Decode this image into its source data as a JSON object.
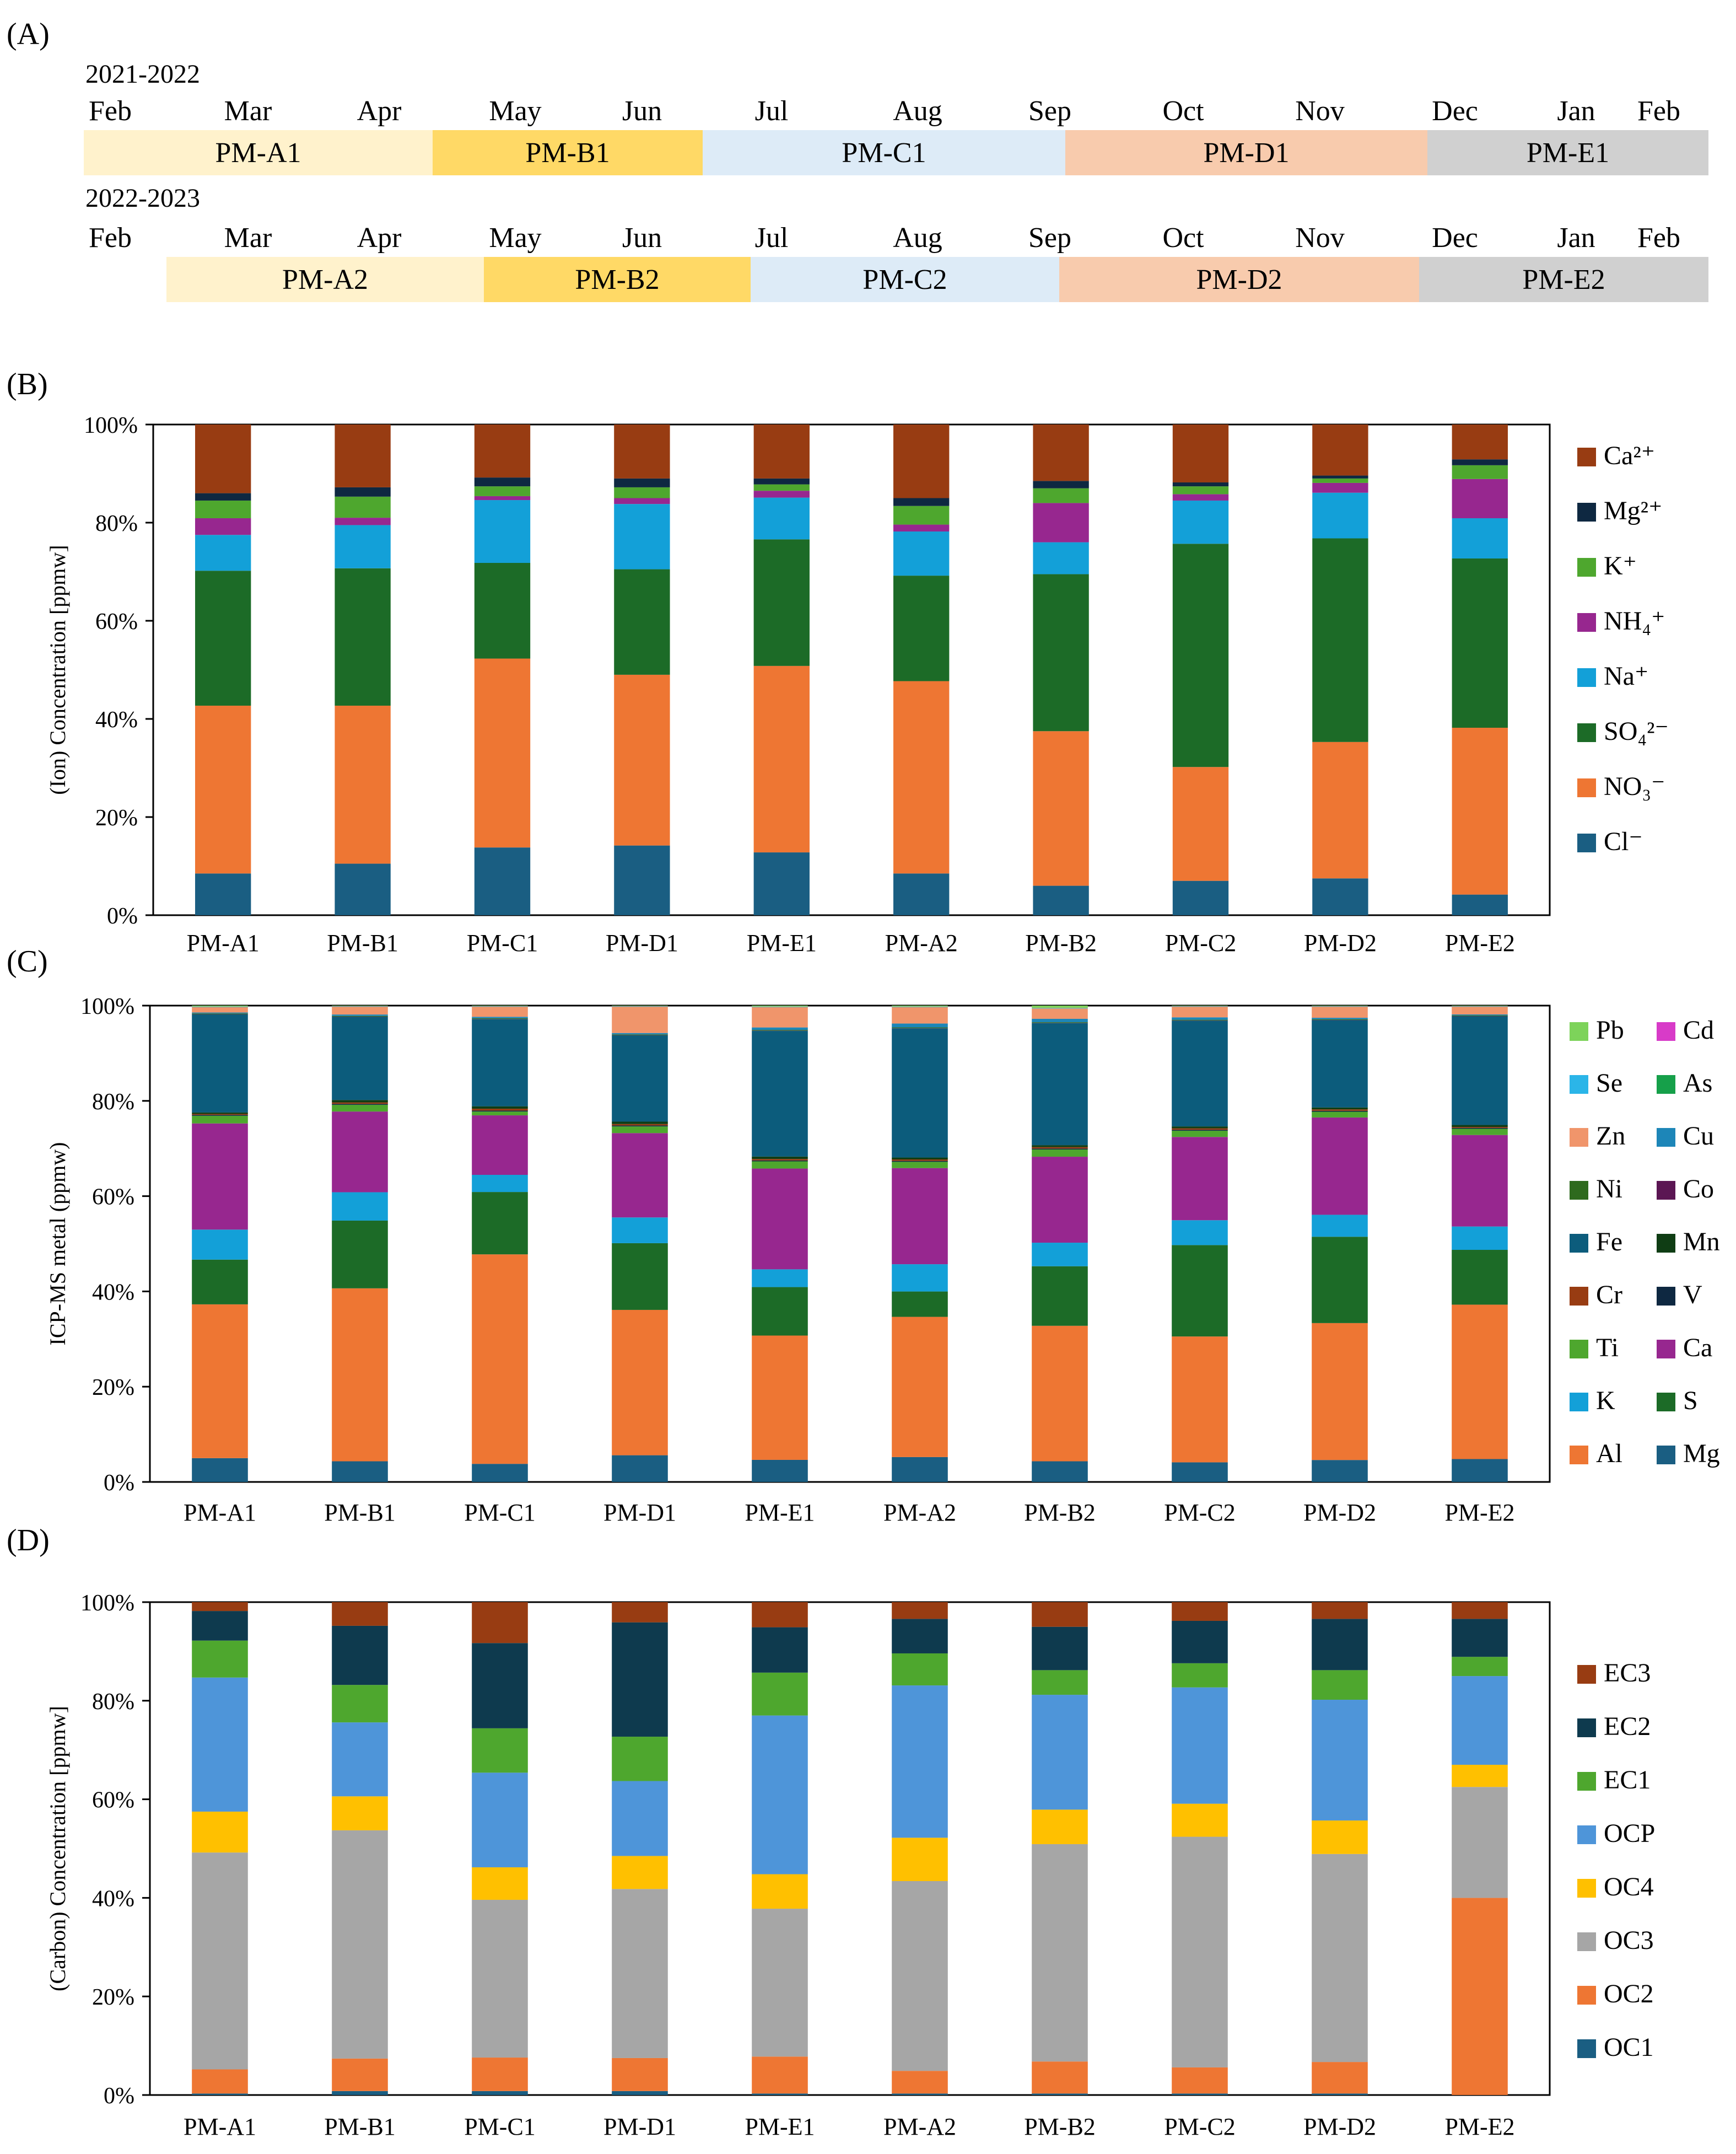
{
  "panel_labels": [
    "(A)",
    "(B)",
    "(C)",
    "(D)"
  ],
  "timeline": {
    "rows": [
      {
        "year": "2021-2022",
        "months": [
          "Feb",
          "Mar",
          "Apr",
          "May",
          "Jun",
          "Jul",
          "Aug",
          "Sep",
          "Oct",
          "Nov",
          "Dec",
          "Jan",
          "Feb"
        ],
        "segments": [
          {
            "label": "PM-A1",
            "color": "#FFF2CC"
          },
          {
            "label": "PM-B1",
            "color": "#FFD966"
          },
          {
            "label": "PM-C1",
            "color": "#DDEBF7"
          },
          {
            "label": "PM-D1",
            "color": "#F8CBAD"
          },
          {
            "label": "PM-E1",
            "color": "#D0D0D0"
          }
        ]
      },
      {
        "year": "2022-2023",
        "months": [
          "Feb",
          "Mar",
          "Apr",
          "May",
          "Jun",
          "Jul",
          "Aug",
          "Sep",
          "Oct",
          "Nov",
          "Dec",
          "Jan",
          "Feb"
        ],
        "segments": [
          {
            "label": "PM-A2",
            "color": "#FFF2CC"
          },
          {
            "label": "PM-B2",
            "color": "#FFD966"
          },
          {
            "label": "PM-C2",
            "color": "#DDEBF7"
          },
          {
            "label": "PM-D2",
            "color": "#F8CBAD"
          },
          {
            "label": "PM-E2",
            "color": "#D0D0D0"
          }
        ]
      }
    ]
  },
  "chart_data": [
    {
      "id": "B",
      "type": "bar",
      "stacked": true,
      "ylabel": "(Ion) Concentration [ppmw]",
      "ylim": [
        0,
        100
      ],
      "yticks": [
        "0%",
        "20%",
        "40%",
        "60%",
        "80%",
        "100%"
      ],
      "categories": [
        "PM-A1",
        "PM-B1",
        "PM-C1",
        "PM-D1",
        "PM-E1",
        "PM-A2",
        "PM-B2",
        "PM-C2",
        "PM-D2",
        "PM-E2"
      ],
      "legend": {
        "position": "right",
        "columns": 1
      },
      "series": [
        {
          "name": "Cl⁻",
          "color": "#1A5E82",
          "values": [
            8.5,
            10.5,
            13.8,
            14.2,
            12.8,
            8.5,
            6,
            7,
            7.5,
            4.2
          ]
        },
        {
          "name": "NO₃⁻",
          "color": "#EE7633",
          "values": [
            34.2,
            32.2,
            38.5,
            34.8,
            38,
            39.2,
            31.5,
            23.2,
            27.8,
            34
          ]
        },
        {
          "name": "SO₄²⁻",
          "color": "#1C6B27",
          "values": [
            27.5,
            28,
            19.5,
            21.5,
            25.8,
            21.5,
            32,
            45.5,
            41.5,
            34.5
          ]
        },
        {
          "name": "Na⁺",
          "color": "#13A0D8",
          "values": [
            7.3,
            8.8,
            12.8,
            13.3,
            8.5,
            9,
            6.5,
            8.8,
            9.3,
            8.2
          ]
        },
        {
          "name": "NH₄⁺",
          "color": "#97278F",
          "values": [
            3.4,
            1.5,
            0.8,
            1.2,
            1.4,
            1.4,
            8,
            1.3,
            2,
            8
          ]
        },
        {
          "name": "K⁺",
          "color": "#4EA72E",
          "values": [
            3.6,
            4.3,
            2,
            2.2,
            1.3,
            3.8,
            3,
            1.6,
            0.9,
            2.8
          ]
        },
        {
          "name": "Mg²⁺",
          "color": "#0E2841",
          "values": [
            1.5,
            1.9,
            1.8,
            1.8,
            1.2,
            1.6,
            1.5,
            0.8,
            0.6,
            1.2
          ]
        },
        {
          "name": "Ca²⁺",
          "color": "#983C12",
          "values": [
            14,
            12.8,
            10.8,
            11,
            11,
            15,
            11.5,
            11.8,
            10.4,
            7.1
          ]
        }
      ]
    },
    {
      "id": "C",
      "type": "bar",
      "stacked": true,
      "ylabel": "ICP-MS metal (ppmw)",
      "ylim": [
        0,
        100
      ],
      "yticks": [
        "0%",
        "20%",
        "40%",
        "60%",
        "80%",
        "100%"
      ],
      "categories": [
        "PM-A1",
        "PM-B1",
        "PM-C1",
        "PM-D1",
        "PM-E1",
        "PM-A2",
        "PM-B2",
        "PM-C2",
        "PM-D2",
        "PM-E2"
      ],
      "legend": {
        "position": "right",
        "columns": 2
      },
      "series": [
        {
          "name": "Mg",
          "color": "#1A5E82",
          "values": [
            5,
            4.3,
            3.8,
            5.6,
            4.6,
            5.2,
            4.3,
            4.1,
            4.6,
            4.8
          ]
        },
        {
          "name": "Al",
          "color": "#EE7633",
          "values": [
            32.3,
            36,
            44,
            30.5,
            25.9,
            29.3,
            28.2,
            26.3,
            28.7,
            32.4
          ]
        },
        {
          "name": "S",
          "color": "#1C6B27",
          "values": [
            9.4,
            14.1,
            13.1,
            14,
            10.1,
            5.3,
            12.4,
            19.1,
            18.1,
            11.5
          ]
        },
        {
          "name": "K",
          "color": "#13A0D8",
          "values": [
            6.3,
            5.9,
            3.6,
            5.4,
            3.7,
            5.7,
            4.9,
            5.2,
            4.6,
            4.9
          ]
        },
        {
          "name": "Ca",
          "color": "#97278F",
          "values": [
            22.3,
            16.8,
            12.5,
            17.7,
            21,
            20.1,
            17.9,
            17.4,
            20.4,
            19.2
          ]
        },
        {
          "name": "Ti",
          "color": "#4EA72E",
          "values": [
            1.6,
            1.4,
            0.8,
            1.4,
            1.5,
            1.3,
            1.5,
            1.3,
            1.2,
            1.3
          ]
        },
        {
          "name": "V",
          "color": "#0E2841",
          "values": [
            0.2,
            0.2,
            0.2,
            0.2,
            0.2,
            0.2,
            0.2,
            0.2,
            0.2,
            0.2
          ]
        },
        {
          "name": "Cr",
          "color": "#983C12",
          "values": [
            0.2,
            0.3,
            0.4,
            0.3,
            0.3,
            0.3,
            0.3,
            0.3,
            0.3,
            0.2
          ]
        },
        {
          "name": "Mn",
          "color": "#0F3D14",
          "values": [
            0.3,
            0.5,
            0.5,
            0.5,
            0.5,
            0.4,
            0.4,
            0.4,
            0.4,
            0.4
          ]
        },
        {
          "name": "Fe",
          "color": "#0C5C7C",
          "values": [
            20.6,
            17.3,
            18.3,
            18.1,
            26.2,
            27,
            25.4,
            22.1,
            18.3,
            22.8
          ]
        },
        {
          "name": "Co",
          "color": "#5B1653",
          "values": [
            0.05,
            0.05,
            0.05,
            0.05,
            0.05,
            0.05,
            0.05,
            0.05,
            0.05,
            0.05
          ]
        },
        {
          "name": "Ni",
          "color": "#2E6A1E",
          "values": [
            0.15,
            0.15,
            0.15,
            0.15,
            0.15,
            0.15,
            0.15,
            0.15,
            0.15,
            0.15
          ]
        },
        {
          "name": "Cu",
          "color": "#1D86B8",
          "values": [
            0.2,
            0.3,
            0.3,
            0.3,
            0.5,
            0.8,
            0.7,
            0.5,
            0.3,
            0.2
          ]
        },
        {
          "name": "Zn",
          "color": "#F0956B",
          "values": [
            1.1,
            1.6,
            2.1,
            5.5,
            4.2,
            3.4,
            2.1,
            2.2,
            2.3,
            1.6
          ]
        },
        {
          "name": "As",
          "color": "#16A04A",
          "values": [
            0.05,
            0.05,
            0.05,
            0.05,
            0.05,
            0.05,
            0.05,
            0.05,
            0.05,
            0.05
          ]
        },
        {
          "name": "Se",
          "color": "#2BB5E8",
          "values": [
            0.05,
            0.05,
            0.05,
            0.05,
            0.05,
            0.05,
            0.05,
            0.05,
            0.05,
            0.05
          ]
        },
        {
          "name": "Cd",
          "color": "#D83BC8",
          "values": [
            0.05,
            0.05,
            0.05,
            0.05,
            0.05,
            0.05,
            0.05,
            0.05,
            0.05,
            0.05
          ]
        },
        {
          "name": "Pb",
          "color": "#7DD35A",
          "values": [
            0.2,
            0.1,
            0.1,
            0.1,
            0.2,
            0.2,
            0.5,
            0.1,
            0.1,
            0.1
          ]
        }
      ]
    },
    {
      "id": "D",
      "type": "bar",
      "stacked": true,
      "ylabel": "(Carbon) Concentration [ppmw]",
      "ylim": [
        0,
        100
      ],
      "yticks": [
        "0%",
        "20%",
        "40%",
        "60%",
        "80%",
        "100%"
      ],
      "categories": [
        "PM-A1",
        "PM-B1",
        "PM-C1",
        "PM-D1",
        "PM-E1",
        "PM-A2",
        "PM-B2",
        "PM-C2",
        "PM-D2",
        "PM-E2"
      ],
      "legend": {
        "position": "right",
        "columns": 1
      },
      "series": [
        {
          "name": "OC1",
          "color": "#1A5E82",
          "values": [
            0.3,
            0.8,
            0.8,
            0.8,
            0.3,
            0.3,
            0.3,
            0.3,
            0.3,
            0
          ]
        },
        {
          "name": "OC2",
          "color": "#EE7633",
          "values": [
            4.9,
            6.6,
            6.8,
            6.7,
            7.5,
            4.6,
            6.5,
            5.3,
            6.4,
            40
          ]
        },
        {
          "name": "OC3",
          "color": "#A6A6A6",
          "values": [
            44,
            46.3,
            32,
            34.3,
            30,
            38.5,
            44.1,
            46.8,
            42.2,
            22.5
          ]
        },
        {
          "name": "OC4",
          "color": "#FFC000",
          "values": [
            8.3,
            6.9,
            6.6,
            6.7,
            7,
            8.8,
            7,
            6.7,
            6.8,
            4.5
          ]
        },
        {
          "name": "OCP",
          "color": "#4E95D9",
          "values": [
            27.2,
            15,
            19.2,
            15.2,
            32.2,
            30.9,
            23.3,
            23.6,
            24.5,
            18
          ]
        },
        {
          "name": "EC1",
          "color": "#4EA72E",
          "values": [
            7.5,
            7.6,
            9,
            9,
            8.7,
            6.5,
            5,
            4.9,
            6,
            3.9
          ]
        },
        {
          "name": "EC2",
          "color": "#0E3A4E",
          "values": [
            6,
            12,
            17.3,
            23.2,
            9.2,
            7,
            8.8,
            8.6,
            10.4,
            7.7
          ]
        },
        {
          "name": "EC3",
          "color": "#983C12",
          "values": [
            1.8,
            4.8,
            8.3,
            4.1,
            5.1,
            3.4,
            5,
            3.8,
            3.4,
            3.4
          ]
        }
      ]
    }
  ]
}
